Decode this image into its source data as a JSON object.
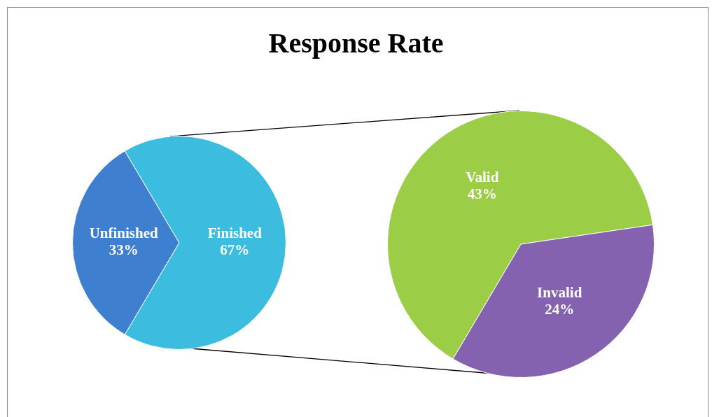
{
  "chart_data": [
    {
      "type": "pie",
      "title": "Response Rate",
      "categories": [
        "Unfinished",
        "Finished"
      ],
      "values": [
        33,
        67
      ],
      "colors": [
        "#3f7fcf",
        "#3cbde0"
      ],
      "value_labels": [
        "33%",
        "67%"
      ]
    },
    {
      "type": "pie",
      "categories": [
        "Valid",
        "Invalid"
      ],
      "values": [
        43,
        24
      ],
      "colors": [
        "#9ccd47",
        "#8462b0"
      ],
      "value_labels": [
        "43%",
        "24%"
      ]
    }
  ]
}
